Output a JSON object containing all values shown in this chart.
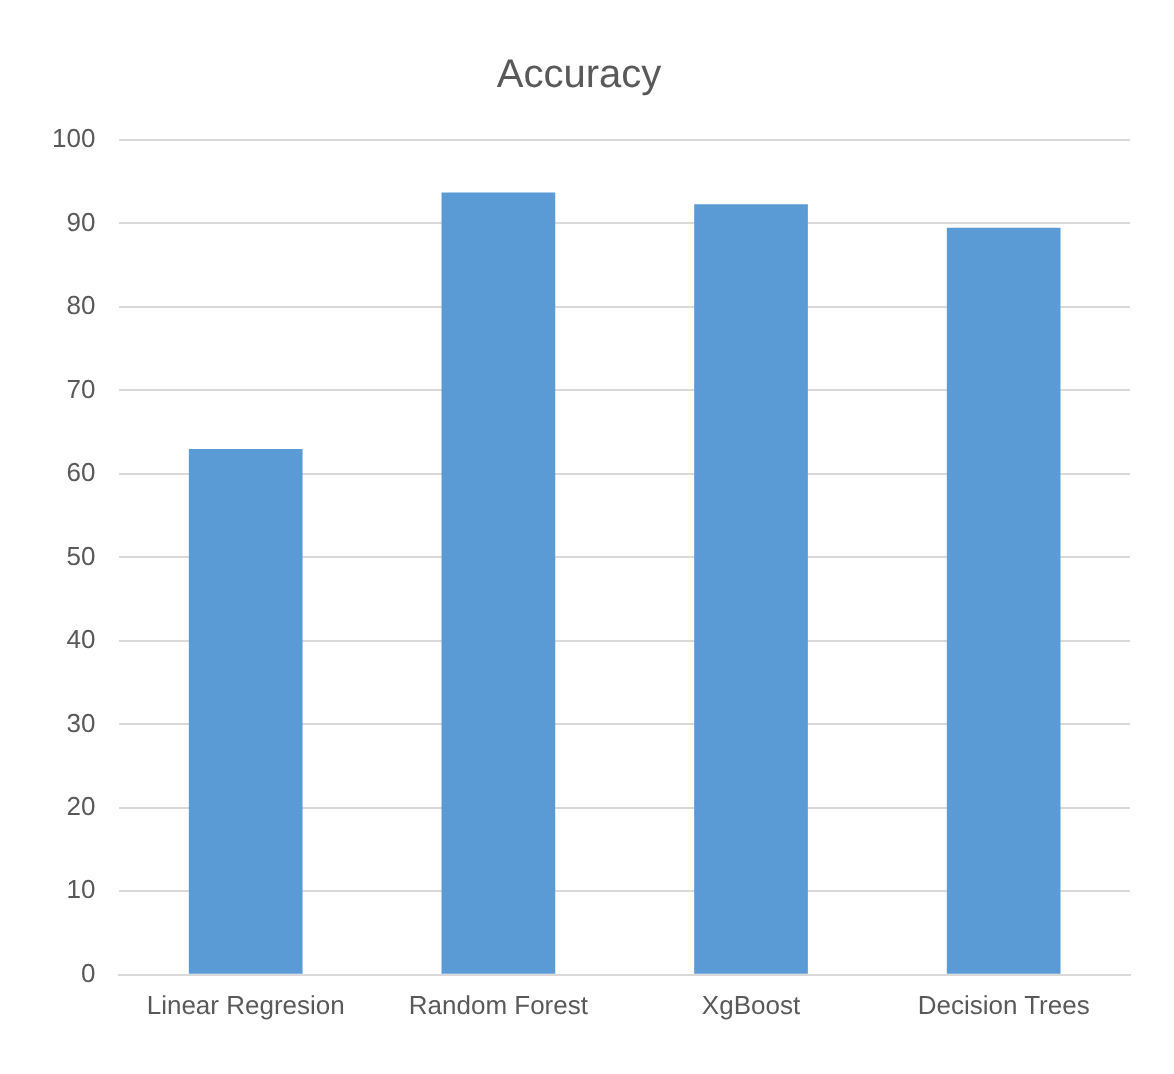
{
  "chart_data": {
    "type": "bar",
    "title": "Accuracy",
    "categories": [
      "Linear Regresion",
      "Random Forest",
      "XgBoost",
      "Decision Trees"
    ],
    "values": [
      63,
      93.7,
      92.3,
      89.5
    ],
    "color": "#5b9bd5",
    "ylim": [
      0,
      100
    ],
    "yticks": [
      0,
      10,
      20,
      30,
      40,
      50,
      60,
      70,
      80,
      90,
      100
    ],
    "grid": "y",
    "legend": false
  }
}
